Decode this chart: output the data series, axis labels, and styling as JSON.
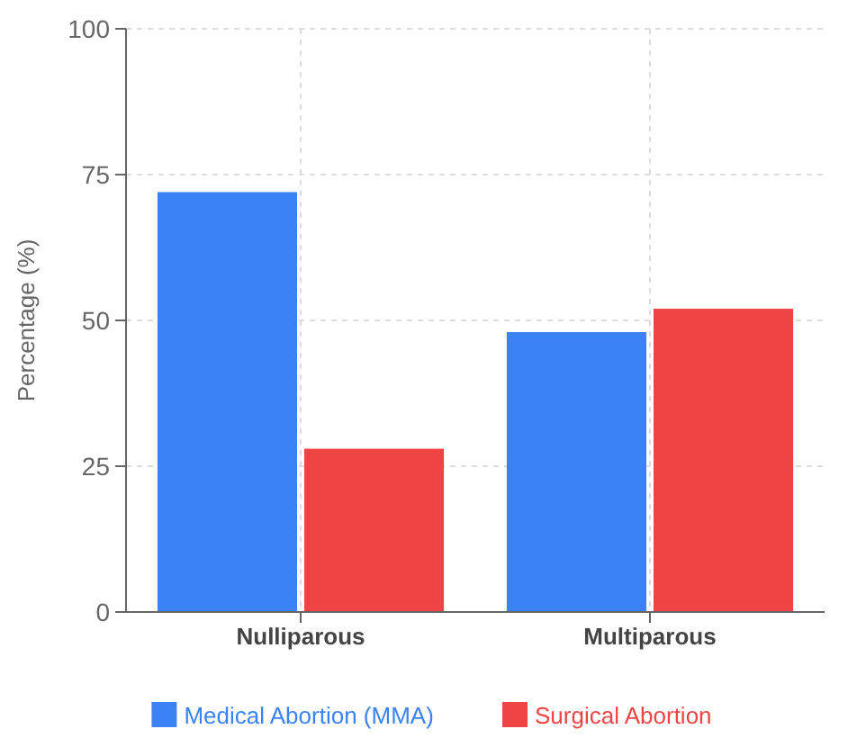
{
  "chart_data": {
    "type": "bar",
    "ylabel": "Percentage (%)",
    "categories": [
      "Nulliparous",
      "Multiparous"
    ],
    "series": [
      {
        "name": "Medical Abortion (MMA)",
        "color": "#3b82f6",
        "values": [
          72,
          48
        ]
      },
      {
        "name": "Surgical Abortion",
        "color": "#ef4444",
        "values": [
          28,
          52
        ]
      }
    ],
    "ylim": [
      0,
      100
    ],
    "yticks": [
      0,
      25,
      50,
      75,
      100
    ],
    "grid": true,
    "legend": "bottom"
  }
}
